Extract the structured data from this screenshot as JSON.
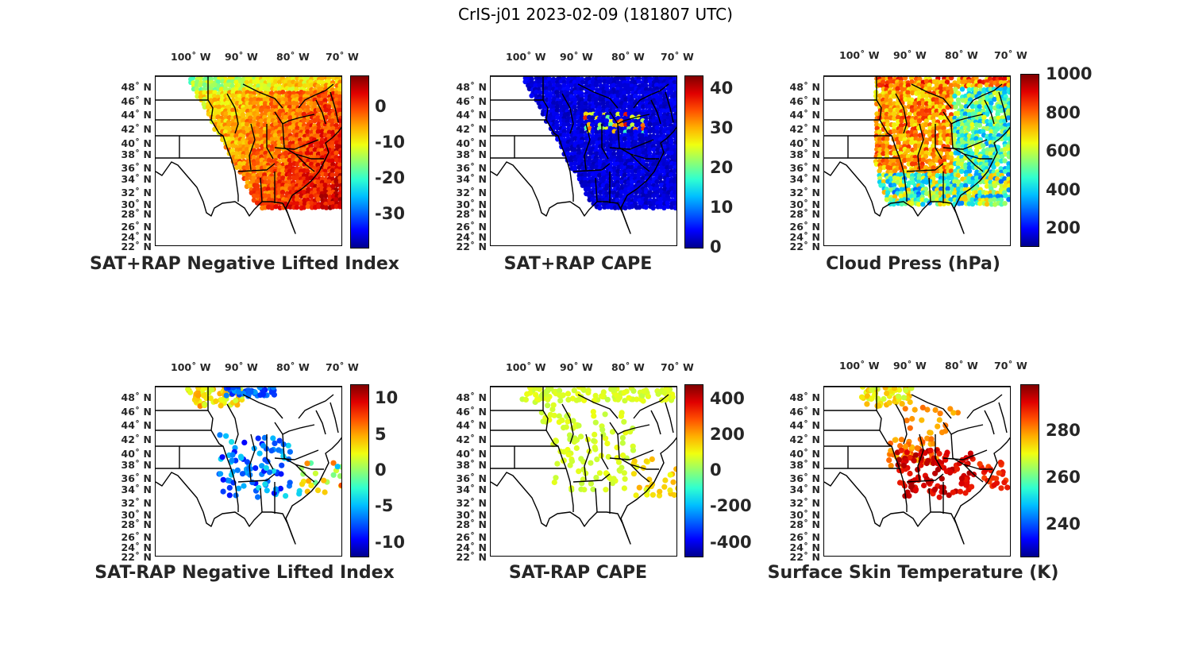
{
  "figure_title": "CrIS-j01 2023-02-09 (181807 UTC)",
  "lon_labels": [
    "100˚ W",
    "90˚ W",
    "80˚ W",
    "70˚ W"
  ],
  "lat_labels": [
    "48˚ N",
    "46˚ N",
    "44˚ N",
    "42˚ N",
    "40˚ N",
    "38˚ N",
    "36˚ N",
    "34˚ N",
    "32˚ N",
    "30˚ N",
    "28˚ N",
    "26˚ N",
    "24˚ N",
    "22˚ N"
  ],
  "colormap": "jet",
  "chart_data": [
    {
      "type": "map-scatter",
      "title": "SAT+RAP Negative Lifted Index",
      "colorbar_ticks": [
        "0",
        "-10",
        "-20",
        "-30"
      ],
      "colorbar_range": [
        -39,
        9
      ],
      "coverage": "swath",
      "dominant_color": "#f0a030"
    },
    {
      "type": "map-scatter",
      "title": "SAT+RAP CAPE",
      "colorbar_ticks": [
        "40",
        "30",
        "20",
        "10",
        "0"
      ],
      "colorbar_range": [
        0,
        44
      ],
      "coverage": "swath",
      "dominant_color": "#00008f"
    },
    {
      "type": "map-scatter",
      "title": "Cloud Press (hPa)",
      "colorbar_ticks": [
        "1000",
        "800",
        "600",
        "400",
        "200"
      ],
      "colorbar_range": [
        100,
        1000
      ],
      "coverage": "cloud",
      "dominant_color": "#ff9020"
    },
    {
      "type": "map-scatter",
      "title": "SAT-RAP Negative Lifted Index",
      "colorbar_ticks": [
        "10",
        "5",
        "0",
        "-5",
        "-10"
      ],
      "colorbar_range": [
        -12.5,
        12
      ],
      "coverage": "sparse",
      "dominant_color": "#1a50ff"
    },
    {
      "type": "map-scatter",
      "title": "SAT-RAP CAPE",
      "colorbar_ticks": [
        "400",
        "200",
        "0",
        "-200",
        "-400"
      ],
      "colorbar_range": [
        -490,
        490
      ],
      "coverage": "sparse",
      "dominant_color": "#80ff70"
    },
    {
      "type": "map-scatter",
      "title": "Surface Skin Temperature (K)",
      "colorbar_ticks": [
        "280",
        "260",
        "240"
      ],
      "colorbar_range": [
        226,
        299
      ],
      "coverage": "sparse",
      "dominant_color": "#e01010"
    }
  ]
}
